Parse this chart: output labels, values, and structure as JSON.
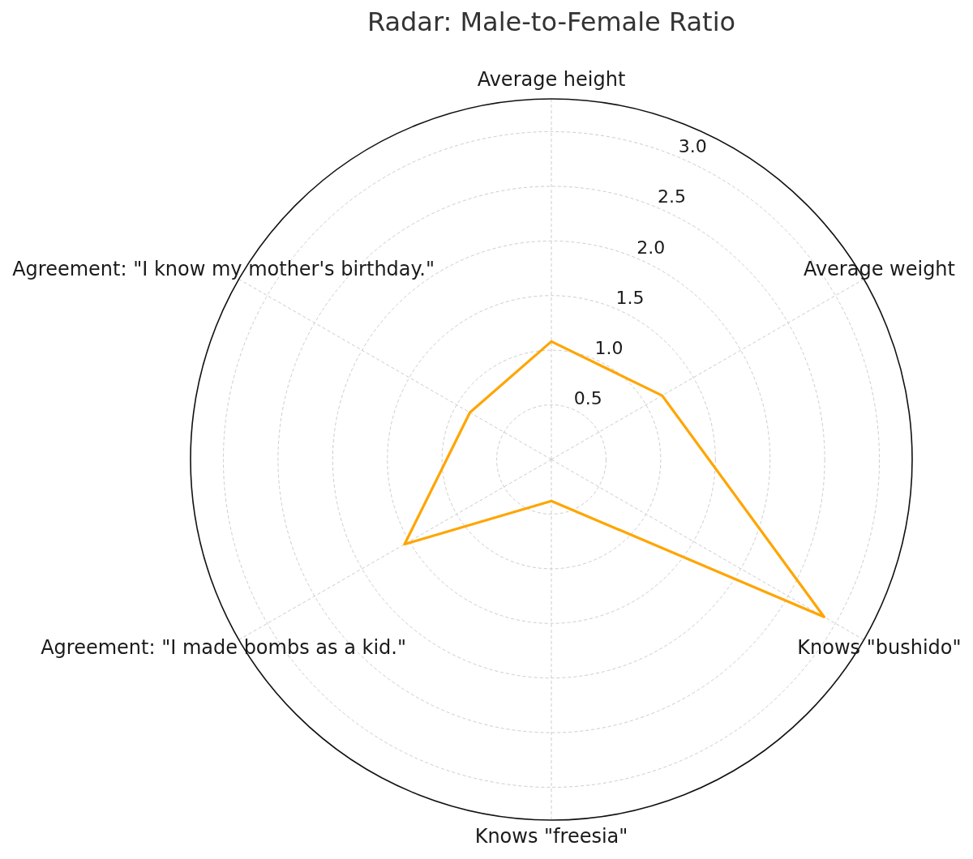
{
  "chart_data": {
    "type": "radar",
    "title": "Radar: Male-to-Female Ratio",
    "categories": [
      "Average height",
      "Average weight",
      "Knows \"bushido\"",
      "Knows \"freesia\"",
      "Agreement: \"I made bombs as a kid.\"",
      "Agreement: \"I know my mother's birthday.\""
    ],
    "series": [
      {
        "color": "#ffa500",
        "values": [
          1.08,
          1.17,
          2.88,
          0.38,
          1.55,
          0.86
        ]
      }
    ],
    "ylim": [
      0,
      3.3
    ],
    "yticks": [
      0.5,
      {
        "value": 1,
        "label": "1.0"
      },
      1.5,
      {
        "value": 2,
        "label": "2.0"
      },
      2.5,
      {
        "value": 3,
        "label": "3.0"
      }
    ],
    "grid": true
  }
}
